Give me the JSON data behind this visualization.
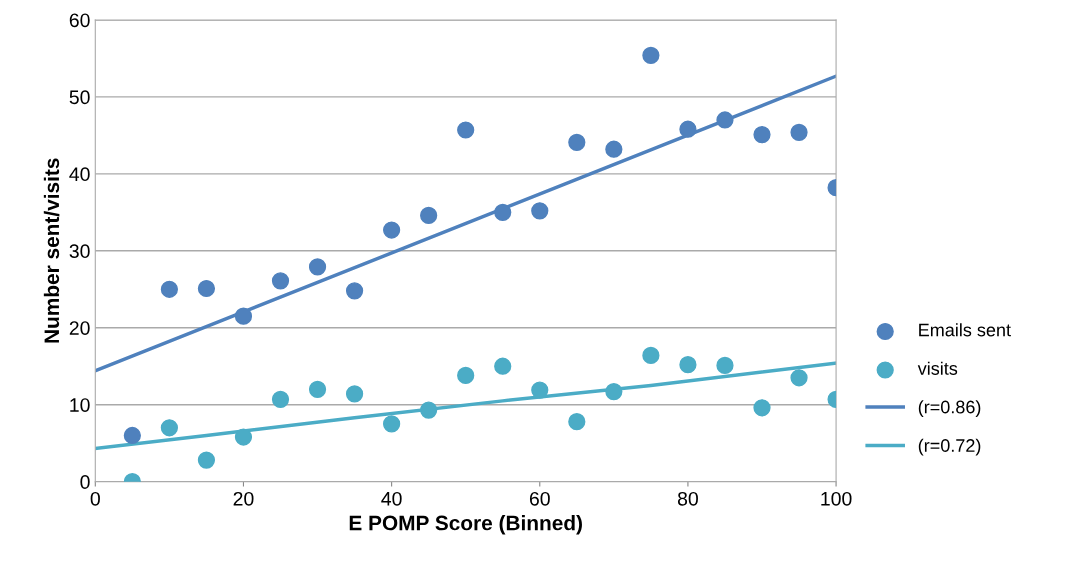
{
  "chart_data": {
    "type": "scatter",
    "xlabel": "E POMP Score (Binned)",
    "ylabel": "Number sent/visits",
    "x": [
      5,
      10,
      15,
      20,
      25,
      30,
      35,
      40,
      45,
      50,
      55,
      60,
      65,
      70,
      75,
      80,
      85,
      90,
      95,
      100
    ],
    "series": [
      {
        "name": "Emails sent",
        "color": "#4f81bd",
        "values": [
          6,
          25,
          25.1,
          21.5,
          26.1,
          27.9,
          24.8,
          32.7,
          34.6,
          45.7,
          35,
          35.2,
          44.1,
          43.2,
          55.4,
          45.8,
          47,
          45.1,
          45.4,
          38.2
        ]
      },
      {
        "name": "visits",
        "color": "#4bacc6",
        "values": [
          0,
          7,
          2.8,
          5.8,
          10.7,
          12,
          11.4,
          7.5,
          9.3,
          13.8,
          15,
          11.9,
          7.8,
          11.7,
          16.4,
          15.2,
          15.1,
          9.6,
          13.5,
          10.7
        ]
      },
      {
        "name": "(r=0.86)",
        "type": "line",
        "marker": "none",
        "color": "#4f81bd",
        "x": [
          0,
          100
        ],
        "values": [
          14.4,
          52.7
        ]
      },
      {
        "name": "(r=0.72)",
        "type": "line",
        "marker": "none",
        "color": "#4bacc6",
        "x": [
          0,
          15,
          35,
          55,
          75,
          100
        ],
        "values": [
          4.3,
          6,
          8.3,
          10.5,
          12.5,
          15.4
        ]
      }
    ],
    "xlim": [
      0,
      100
    ],
    "ylim": [
      0,
      60
    ],
    "xticks": [
      0,
      20,
      40,
      60,
      80,
      100
    ],
    "yticks": [
      0,
      10,
      20,
      30,
      40,
      50,
      60
    ],
    "grid": "y",
    "legend": "right",
    "marker": "circle"
  }
}
